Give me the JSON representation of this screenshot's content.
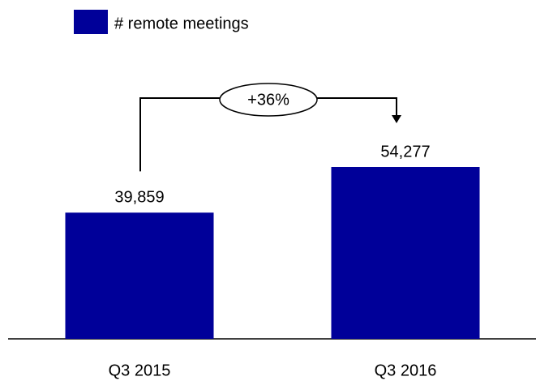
{
  "chart_data": {
    "type": "bar",
    "categories": [
      "Q3 2015",
      "Q3 2016"
    ],
    "series": [
      {
        "name": "# remote meetings",
        "color": "#000099",
        "values": [
          39859,
          54277
        ],
        "value_labels": [
          "39,859",
          "54,277"
        ]
      }
    ],
    "annotation": "+36%"
  }
}
